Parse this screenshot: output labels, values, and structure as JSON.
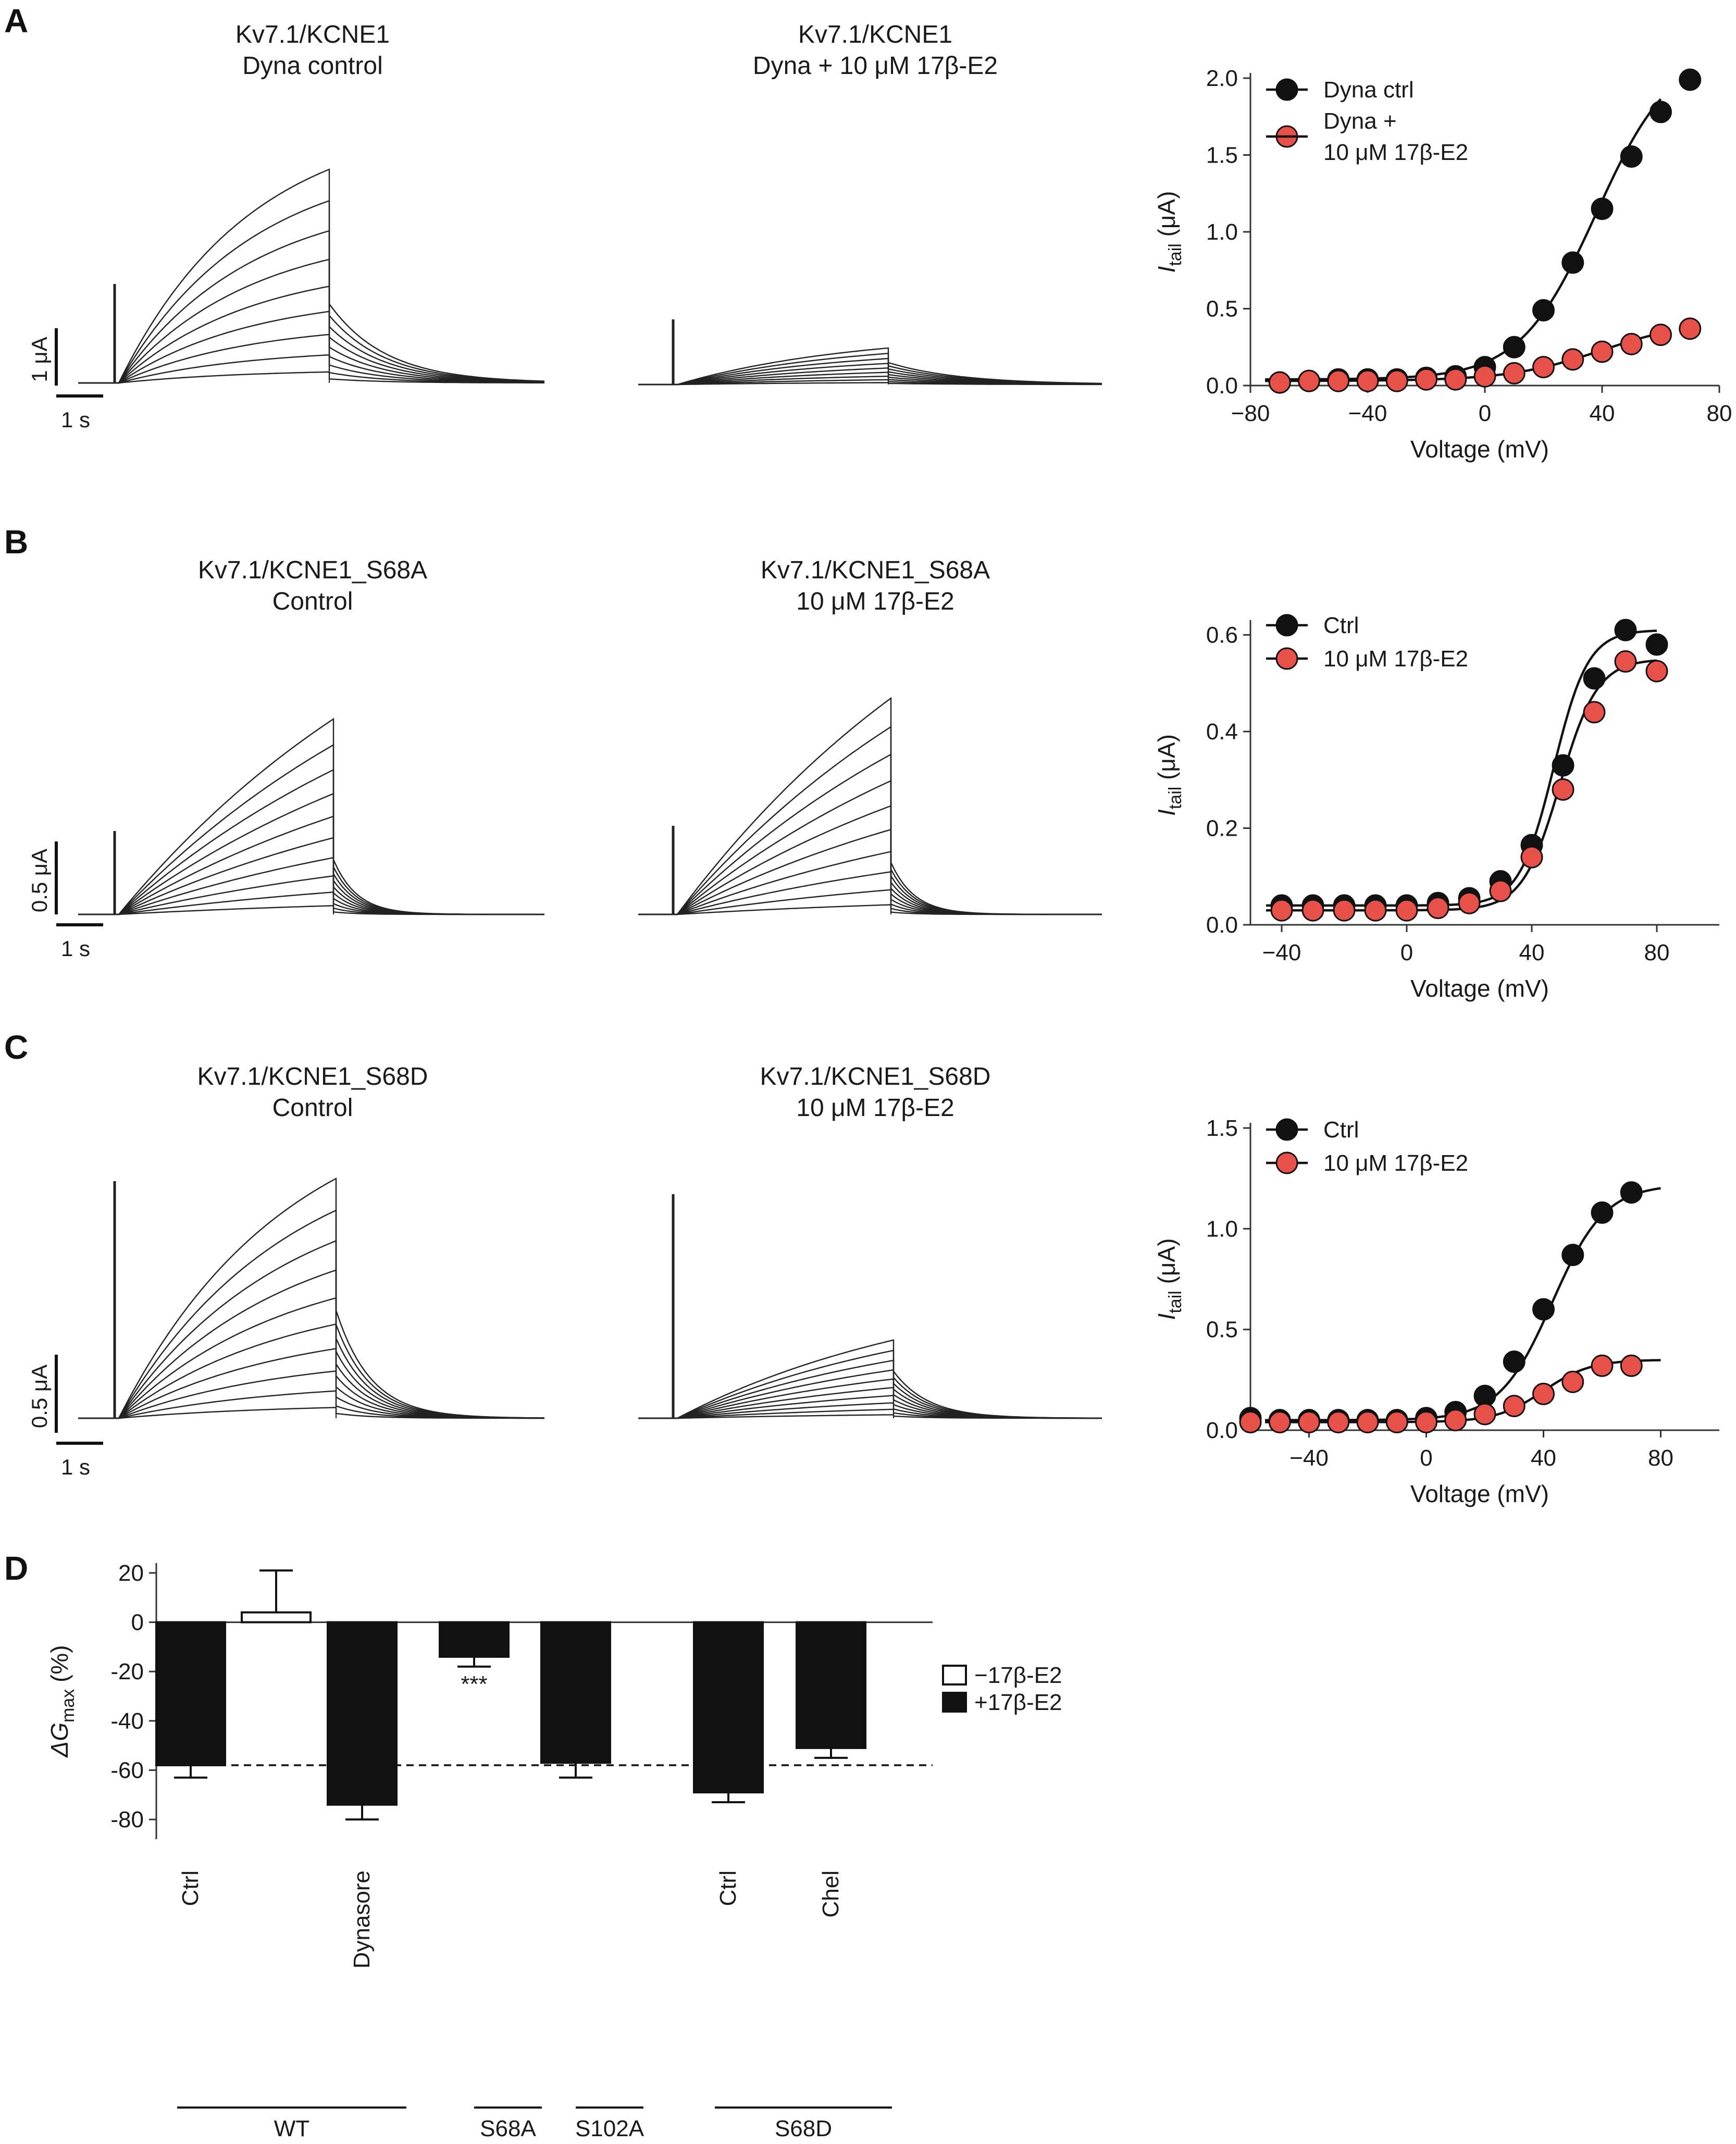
{
  "colors": {
    "ctrl": "#111111",
    "drug": "#e8504a",
    "bar_open": "#ffffff",
    "bar_filled": "#111111"
  },
  "panels": {
    "A": {
      "letter": "A",
      "trace_left": {
        "title1": "Kv7.1/KCNE1",
        "title2": "Dyna control"
      },
      "trace_right": {
        "title1": "Kv7.1/KCNE1",
        "title2": "Dyna + 10 μM 17β-E2"
      },
      "scalebar": {
        "amp": "1 μA",
        "time": "1 s"
      }
    },
    "B": {
      "letter": "B",
      "trace_left": {
        "title1": "Kv7.1/KCNE1_S68A",
        "title2": "Control"
      },
      "trace_right": {
        "title1": "Kv7.1/KCNE1_S68A",
        "title2": "10 μM 17β-E2"
      },
      "scalebar": {
        "amp": "0.5 μA",
        "time": "1 s"
      }
    },
    "C": {
      "letter": "C",
      "trace_left": {
        "title1": "Kv7.1/KCNE1_S68D",
        "title2": "Control"
      },
      "trace_right": {
        "title1": "Kv7.1/KCNE1_S68D",
        "title2": "10 μM 17β-E2"
      },
      "scalebar": {
        "amp": "0.5 μA",
        "time": "1 s"
      }
    },
    "D": {
      "letter": "D"
    }
  },
  "chart_data": [
    {
      "id": "A",
      "type": "scatter",
      "xlabel": "Voltage (mV)",
      "ylabel_main": "I",
      "ylabel_sub": "tail",
      "ylabel_unit": " (μA)",
      "xlim": [
        -80,
        80
      ],
      "ylim": [
        0,
        2.0
      ],
      "xticks": [
        "−80",
        "−40",
        "0",
        "40",
        "80"
      ],
      "xtick_values": [
        -80,
        -40,
        0,
        40,
        80
      ],
      "yticks": [
        "0.0",
        "0.5",
        "1.0",
        "1.5",
        "2.0"
      ],
      "ytick_values": [
        0,
        0.5,
        1.0,
        1.5,
        2.0
      ],
      "legend": [
        "Dyna ctrl",
        "Dyna +",
        "10 μM 17β-E2"
      ],
      "series": [
        {
          "name": "Dyna ctrl",
          "color": "#111111",
          "x": [
            -70,
            -60,
            -50,
            -40,
            -30,
            -20,
            -10,
            0,
            10,
            20,
            30,
            40,
            50,
            60,
            70
          ],
          "y": [
            0.02,
            0.03,
            0.04,
            0.04,
            0.04,
            0.05,
            0.06,
            0.12,
            0.25,
            0.49,
            0.8,
            1.15,
            1.49,
            1.78,
            1.99
          ],
          "fit": {
            "A1": 0.04,
            "A2": 2.2,
            "V": 38,
            "k": 13
          }
        },
        {
          "name": "Dyna + 10 μM 17β-E2",
          "color": "#e8504a",
          "x": [
            -70,
            -60,
            -50,
            -40,
            -30,
            -20,
            -10,
            0,
            10,
            20,
            30,
            40,
            50,
            60,
            70
          ],
          "y": [
            0.02,
            0.03,
            0.03,
            0.03,
            0.03,
            0.04,
            0.04,
            0.06,
            0.08,
            0.12,
            0.17,
            0.22,
            0.27,
            0.33,
            0.37
          ],
          "fit": {
            "A1": 0.03,
            "A2": 0.43,
            "V": 40,
            "k": 16
          }
        }
      ]
    },
    {
      "id": "B",
      "type": "scatter",
      "xlabel": "Voltage (mV)",
      "ylabel_main": "I",
      "ylabel_sub": "tail",
      "ylabel_unit": " (μA)",
      "xlim": [
        -50,
        100
      ],
      "ylim": [
        0,
        0.62
      ],
      "xticks": [
        "−40",
        "0",
        "40",
        "80"
      ],
      "xtick_values": [
        -40,
        0,
        40,
        80
      ],
      "yticks": [
        "0.0",
        "0.2",
        "0.4",
        "0.6"
      ],
      "ytick_values": [
        0,
        0.2,
        0.4,
        0.6
      ],
      "legend": [
        "Ctrl",
        "10 μM 17β-E2"
      ],
      "series": [
        {
          "name": "Ctrl",
          "color": "#111111",
          "x": [
            -40,
            -30,
            -20,
            -10,
            0,
            10,
            20,
            30,
            40,
            50,
            60,
            70,
            80
          ],
          "y": [
            0.04,
            0.04,
            0.04,
            0.04,
            0.04,
            0.045,
            0.055,
            0.09,
            0.165,
            0.33,
            0.51,
            0.61,
            0.58
          ],
          "fit": {
            "A1": 0.04,
            "A2": 0.61,
            "V": 47,
            "k": 5.5
          }
        },
        {
          "name": "10 μM 17β-E2",
          "color": "#e8504a",
          "x": [
            -40,
            -30,
            -20,
            -10,
            0,
            10,
            20,
            30,
            40,
            50,
            60,
            70,
            80
          ],
          "y": [
            0.03,
            0.03,
            0.03,
            0.03,
            0.03,
            0.035,
            0.045,
            0.07,
            0.14,
            0.28,
            0.44,
            0.545,
            0.525
          ],
          "fit": {
            "A1": 0.03,
            "A2": 0.55,
            "V": 49,
            "k": 6
          }
        }
      ]
    },
    {
      "id": "C",
      "type": "scatter",
      "xlabel": "Voltage (mV)",
      "ylabel_main": "I",
      "ylabel_sub": "tail",
      "ylabel_unit": " (μA)",
      "xlim": [
        -60,
        100
      ],
      "ylim": [
        0,
        1.5
      ],
      "xticks": [
        "−40",
        "0",
        "40",
        "80"
      ],
      "xtick_values": [
        -40,
        0,
        40,
        80
      ],
      "yticks": [
        "0.0",
        "0.5",
        "1.0",
        "1.5"
      ],
      "ytick_values": [
        0,
        0.5,
        1.0,
        1.5
      ],
      "legend": [
        "Ctrl",
        "10 μM 17β-E2"
      ],
      "series": [
        {
          "name": "Ctrl",
          "color": "#111111",
          "x": [
            -60,
            -50,
            -40,
            -30,
            -20,
            -10,
            0,
            10,
            20,
            30,
            40,
            50,
            60,
            70
          ],
          "y": [
            0.06,
            0.05,
            0.05,
            0.05,
            0.05,
            0.05,
            0.06,
            0.09,
            0.17,
            0.34,
            0.6,
            0.87,
            1.08,
            1.18
          ],
          "fit": {
            "A1": 0.05,
            "A2": 1.22,
            "V": 43,
            "k": 9
          }
        },
        {
          "name": "10 μM 17β-E2",
          "color": "#e8504a",
          "x": [
            -60,
            -50,
            -40,
            -30,
            -20,
            -10,
            0,
            10,
            20,
            30,
            40,
            50,
            60,
            70
          ],
          "y": [
            0.04,
            0.04,
            0.04,
            0.04,
            0.04,
            0.04,
            0.04,
            0.05,
            0.08,
            0.12,
            0.18,
            0.24,
            0.32,
            0.32
          ],
          "fit": {
            "A1": 0.04,
            "A2": 0.35,
            "V": 40,
            "k": 8
          }
        }
      ]
    },
    {
      "id": "D",
      "type": "bar",
      "ylabel_main": "ΔG",
      "ylabel_sub": "max",
      "ylabel_unit": " (%)",
      "ylim": [
        -88,
        24
      ],
      "yticks": [
        "20",
        "0",
        "-20",
        "-40",
        "-60",
        "-80"
      ],
      "ytick_values": [
        20,
        0,
        -20,
        -40,
        -60,
        -80
      ],
      "legend": [
        "−17β-E2",
        "+17β-E2"
      ],
      "reference_line": -58,
      "bars": [
        {
          "label": "Ctrl",
          "value": -58,
          "err": 5,
          "treatment": "+"
        },
        {
          "label": "",
          "value": 4,
          "err": 17,
          "treatment": "-"
        },
        {
          "label": "Dynasore",
          "value": -74,
          "err": 6,
          "treatment": "+"
        },
        {
          "label": "",
          "value": -14,
          "err": 4,
          "treatment": "+",
          "annotation": "***"
        },
        {
          "label": "",
          "value": -57,
          "err": 6,
          "treatment": "+"
        },
        {
          "label": "Ctrl",
          "value": -69,
          "err": 4,
          "treatment": "+"
        },
        {
          "label": "Chel",
          "value": -51,
          "err": 4,
          "treatment": "+"
        }
      ],
      "groups": [
        {
          "label": "WT"
        },
        {
          "label": "S68A"
        },
        {
          "label": "S102A"
        },
        {
          "label": "S68D"
        }
      ]
    }
  ]
}
